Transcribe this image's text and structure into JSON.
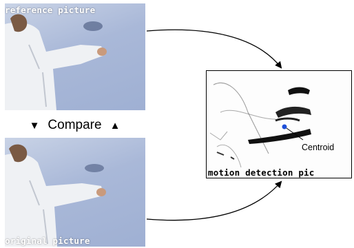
{
  "reference_panel": {
    "caption": "reference picture"
  },
  "original_panel": {
    "caption": "original picture"
  },
  "compare": {
    "label": "Compare",
    "down_glyph": "▼",
    "up_glyph": "▲"
  },
  "motion_panel": {
    "caption": "motion detection pic",
    "centroid_label": "Centroid"
  },
  "colors": {
    "centroid_dot": "#1e4fd8",
    "coat": "#f2f3f5",
    "wall": "#a9b8d8"
  }
}
